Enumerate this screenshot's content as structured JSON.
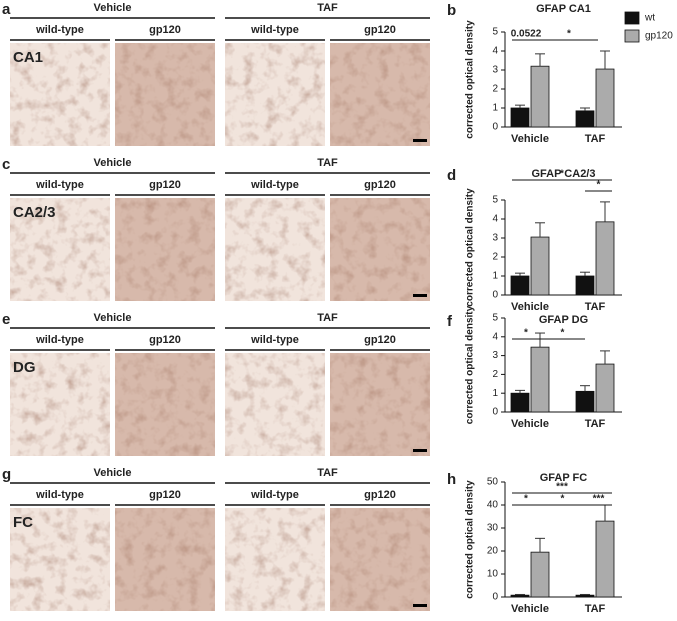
{
  "panels": [
    {
      "letter": "a",
      "groups": [
        "Vehicle",
        "TAF"
      ],
      "genotypes": [
        "wild-type",
        "gp120",
        "wild-type",
        "gp120"
      ],
      "region": "CA1"
    },
    {
      "letter": "c",
      "groups": [
        "Vehicle",
        "TAF"
      ],
      "genotypes": [
        "wild-type",
        "gp120",
        "wild-type",
        "gp120"
      ],
      "region": "CA2/3"
    },
    {
      "letter": "e",
      "groups": [
        "Vehicle",
        "TAF"
      ],
      "genotypes": [
        "wild-type",
        "gp120",
        "wild-type",
        "gp120"
      ],
      "region": "DG"
    },
    {
      "letter": "g",
      "groups": [
        "Vehicle",
        "TAF"
      ],
      "genotypes": [
        "wild-type",
        "gp120",
        "wild-type",
        "gp120"
      ],
      "region": "FC"
    }
  ],
  "chart_data": [
    {
      "type": "bar",
      "letter": "b",
      "title": "GFAP CA1",
      "y_label": "corrected optical density",
      "categories": [
        "Vehicle",
        "TAF"
      ],
      "series": [
        {
          "name": "wt",
          "color": "#111111",
          "values": [
            1.0,
            0.85
          ],
          "errors": [
            0.15,
            0.15
          ]
        },
        {
          "name": "gp120",
          "color": "#ababab",
          "values": [
            3.2,
            3.05
          ],
          "errors": [
            0.65,
            0.95
          ]
        }
      ],
      "ylim": [
        0,
        5
      ],
      "yticks": [
        0,
        1,
        2,
        3,
        4,
        5
      ],
      "annotations": [
        "0.0522",
        "*"
      ]
    },
    {
      "type": "bar",
      "letter": "d",
      "title": "GFAP CA2/3",
      "y_label": "corrected optical density",
      "categories": [
        "Vehicle",
        "TAF"
      ],
      "series": [
        {
          "color": "#111111",
          "values": [
            1.0,
            1.0
          ],
          "errors": [
            0.15,
            0.2
          ]
        },
        {
          "color": "#ababab",
          "values": [
            3.05,
            3.85
          ],
          "errors": [
            0.75,
            1.05
          ]
        }
      ],
      "ylim": [
        0,
        5
      ],
      "yticks": [
        0,
        1,
        2,
        3,
        4,
        5
      ],
      "annotations": [
        "*",
        "*"
      ]
    },
    {
      "type": "bar",
      "letter": "f",
      "title": "GFAP DG",
      "y_label": "corrected optical density",
      "categories": [
        "Vehicle",
        "TAF"
      ],
      "series": [
        {
          "color": "#111111",
          "values": [
            1.0,
            1.1
          ],
          "errors": [
            0.15,
            0.3
          ]
        },
        {
          "color": "#ababab",
          "values": [
            3.45,
            2.55
          ],
          "errors": [
            0.75,
            0.7
          ]
        }
      ],
      "ylim": [
        0,
        5
      ],
      "yticks": [
        0,
        1,
        2,
        3,
        4,
        5
      ],
      "annotations": [
        "*",
        "*"
      ]
    },
    {
      "type": "bar",
      "letter": "h",
      "title": "GFAP FC",
      "y_label": "corrected optical density",
      "categories": [
        "Vehicle",
        "TAF"
      ],
      "series": [
        {
          "color": "#111111",
          "values": [
            0.8,
            0.8
          ],
          "errors": [
            0.3,
            0.3
          ]
        },
        {
          "color": "#ababab",
          "values": [
            19.5,
            33
          ],
          "errors": [
            6,
            7
          ]
        }
      ],
      "ylim": [
        0,
        50
      ],
      "yticks": [
        0,
        10,
        20,
        30,
        40,
        50
      ],
      "annotations": [
        "*",
        "***",
        "*",
        "***"
      ]
    }
  ]
}
